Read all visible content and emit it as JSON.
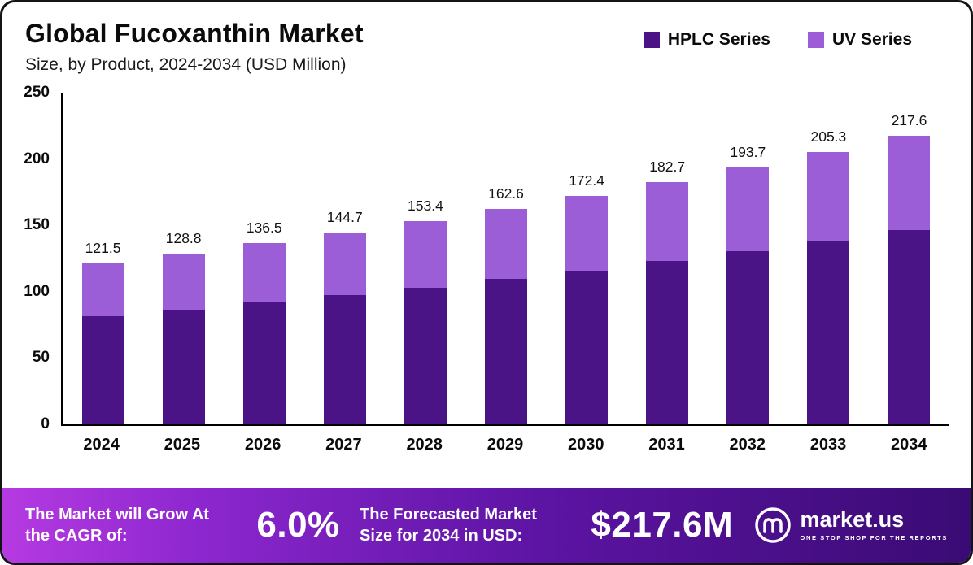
{
  "title": "Global Fucoxanthin Market",
  "subtitle": "Size, by Product, 2024-2034 (USD Million)",
  "legend": [
    {
      "label": "HPLC Series",
      "color": "#4a1486"
    },
    {
      "label": "UV Series",
      "color": "#9c5ed6"
    }
  ],
  "chart_data": {
    "type": "bar",
    "stacked": true,
    "title": "Global Fucoxanthin Market Size, by Product, 2024-2034 (USD Million)",
    "categories": [
      "2024",
      "2025",
      "2026",
      "2027",
      "2028",
      "2029",
      "2030",
      "2031",
      "2032",
      "2033",
      "2034"
    ],
    "series": [
      {
        "name": "HPLC Series",
        "color": "#4a1486",
        "values": [
          81.8,
          86.7,
          91.9,
          97.4,
          103.2,
          109.4,
          116.0,
          123.0,
          130.4,
          138.2,
          146.5
        ]
      },
      {
        "name": "UV Series",
        "color": "#9c5ed6",
        "values": [
          39.7,
          42.1,
          44.6,
          47.3,
          50.2,
          53.2,
          56.4,
          59.7,
          63.3,
          67.1,
          71.1
        ]
      }
    ],
    "totals": [
      121.5,
      128.8,
      136.5,
      144.7,
      153.4,
      162.6,
      172.4,
      182.7,
      193.7,
      205.3,
      217.6
    ],
    "xlabel": "",
    "ylabel": "",
    "ylim": [
      0,
      250
    ],
    "yticks": [
      0,
      50,
      100,
      150,
      200,
      250
    ],
    "grid": false,
    "legend_position": "top-right"
  },
  "footer": {
    "cagr_label": "The Market will Grow At the CAGR of:",
    "cagr_value": "6.0%",
    "forecast_label": "The Forecasted Market Size for 2034 in USD:",
    "forecast_value": "$217.6M",
    "brand": "market.us",
    "brand_tagline": "ONE STOP SHOP FOR THE REPORTS"
  }
}
